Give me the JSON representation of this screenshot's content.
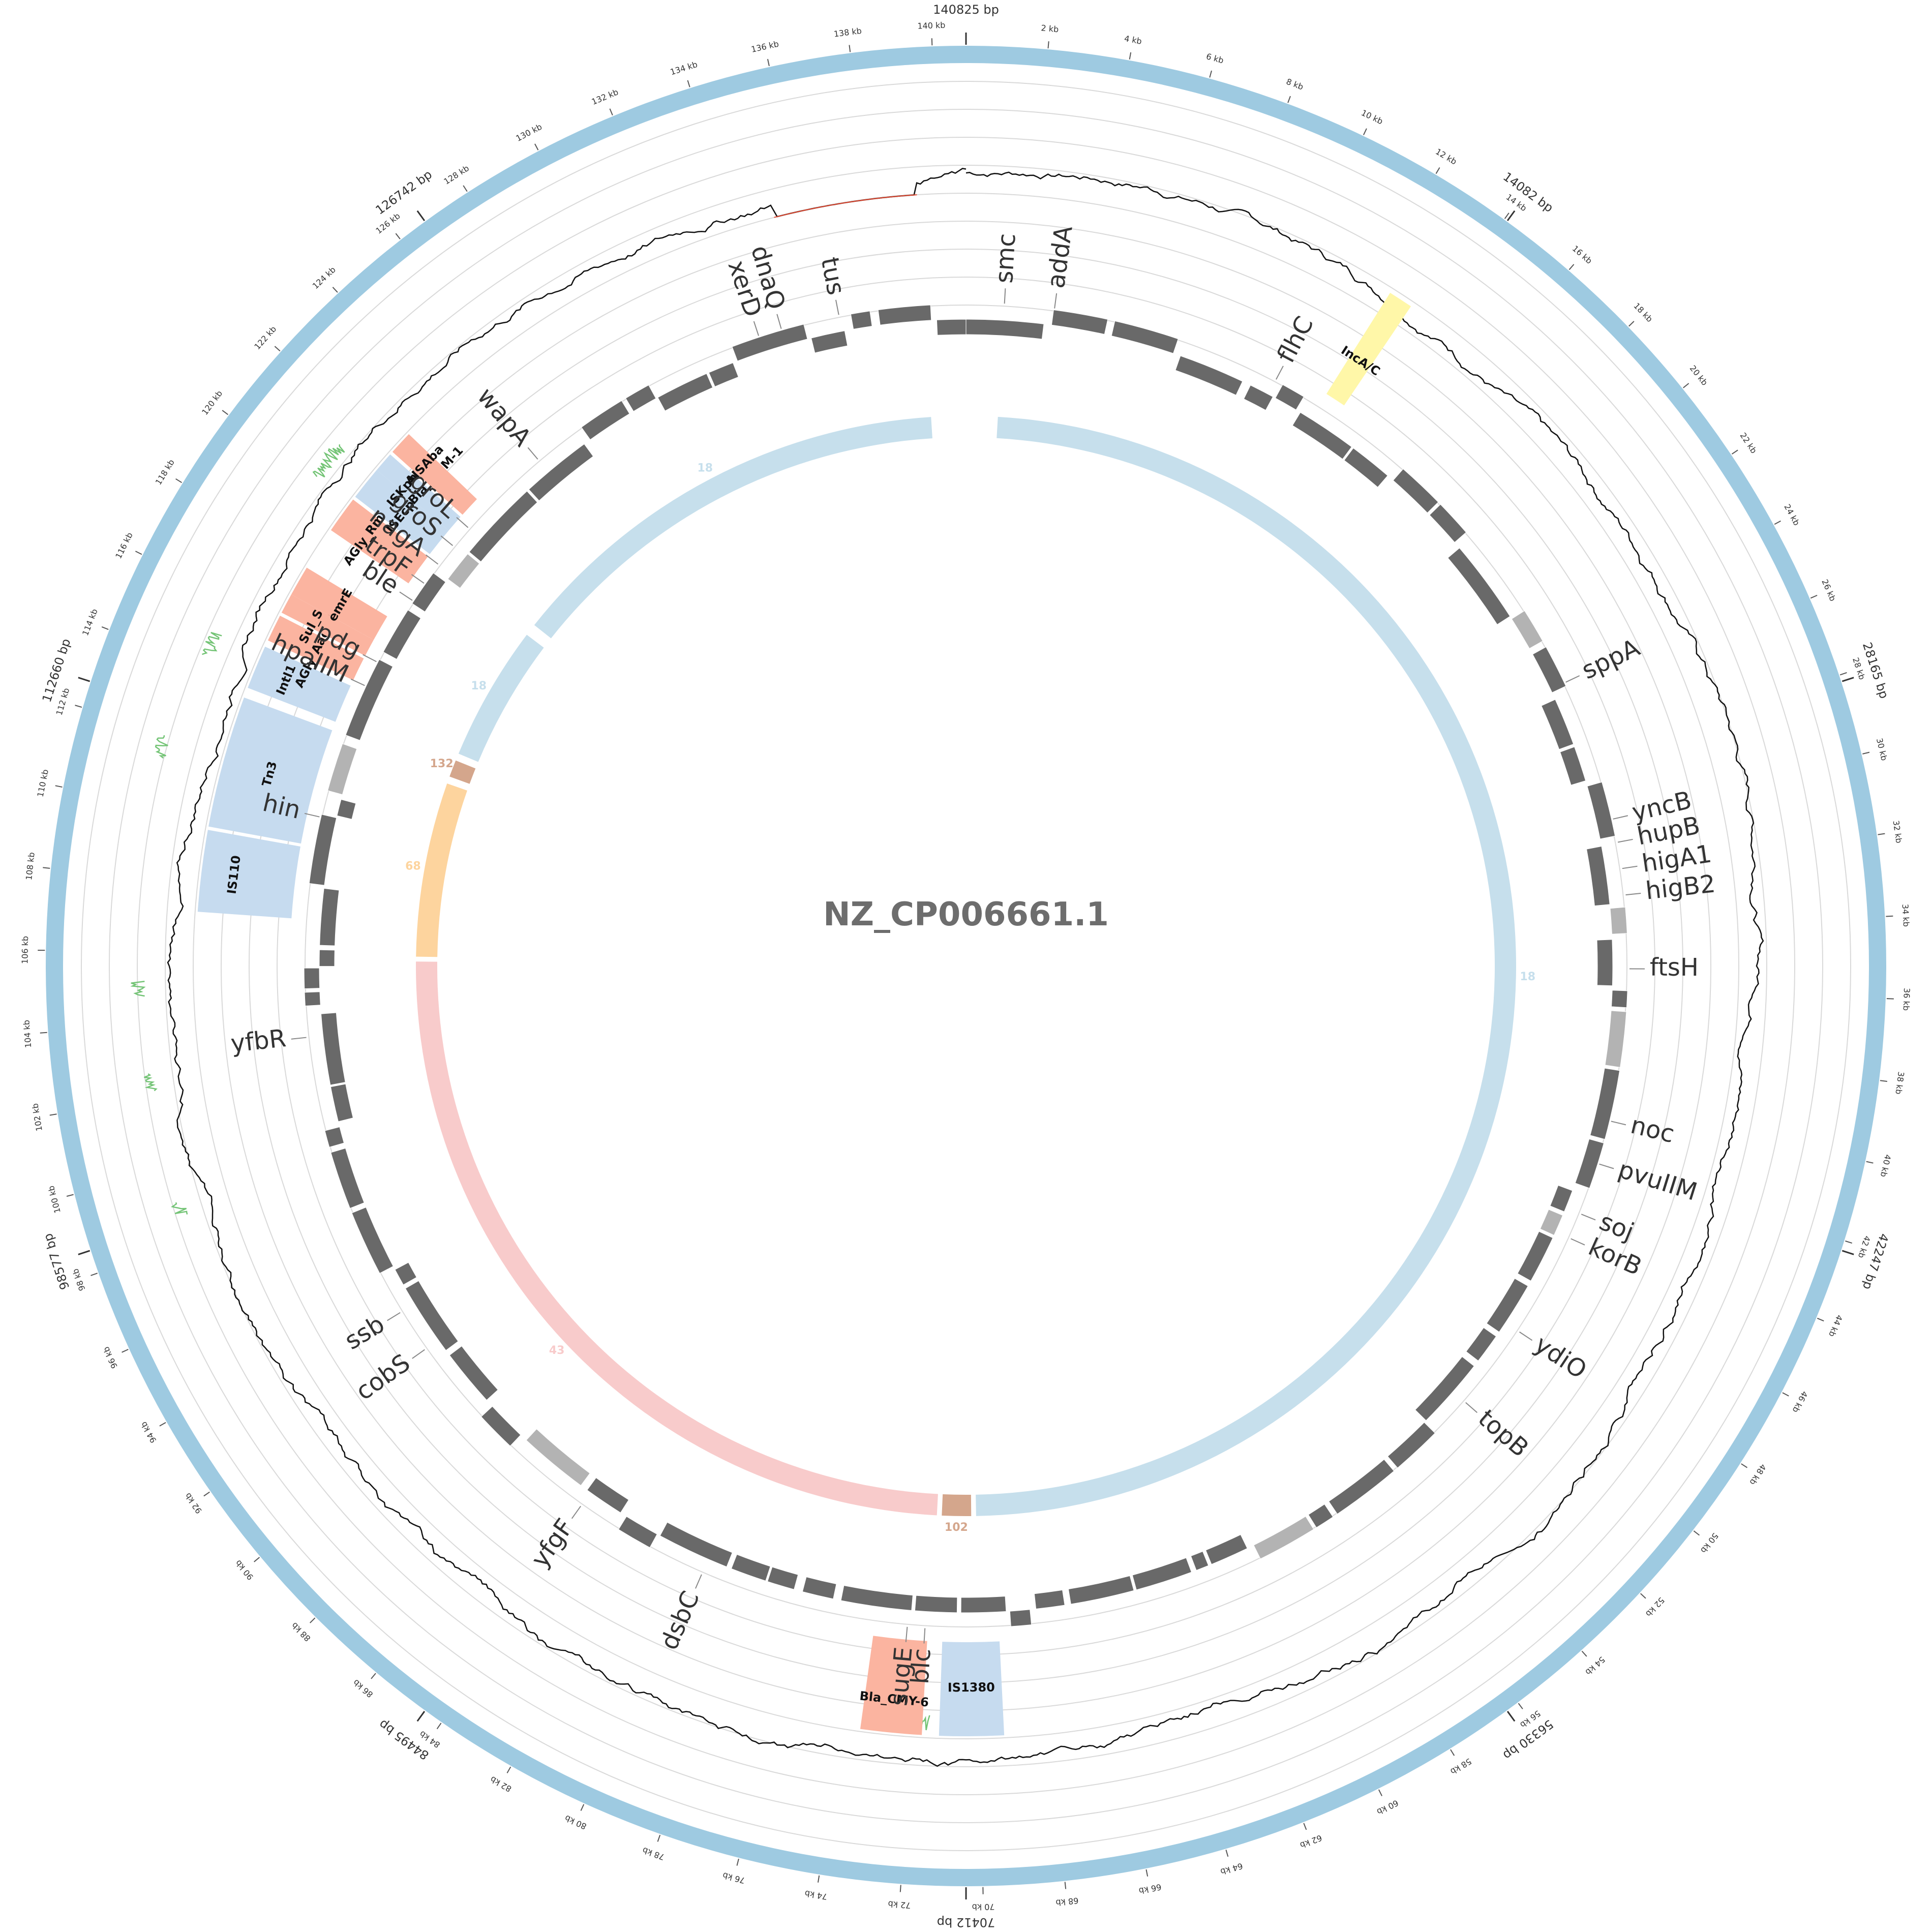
{
  "map": {
    "title": "NZ_CP006661.1",
    "total_length_bp": 140825,
    "colors": {
      "outer_ring": "#9ecae1",
      "gene_forward": "#696969",
      "gene_mobile": "#b3b3b3",
      "coverage_line": "#111111",
      "coverage_low": "#e34a33",
      "coverage_high": "#74c476",
      "resistance": "#fbb4a0",
      "mobile_element": "#c6dbef",
      "replicon": "#fff7a8",
      "grid": "#d9d9d9",
      "contig_blue": "#c6dfec",
      "contig_orange": "#fdd49e",
      "contig_brown": "#d4a68c",
      "contig_pink": "#f8cbcb",
      "title": "#6d6d6d"
    }
  },
  "ticks": {
    "minor": [
      "2 kb",
      "4 kb",
      "6 kb",
      "8 kb",
      "10 kb",
      "12 kb",
      "14 kb",
      "16 kb",
      "18 kb",
      "20 kb",
      "22 kb",
      "24 kb",
      "26 kb",
      "28 kb",
      "30 kb",
      "32 kb",
      "34 kb",
      "36 kb",
      "38 kb",
      "40 kb",
      "42 kb",
      "44 kb",
      "46 kb",
      "48 kb",
      "50 kb",
      "52 kb",
      "54 kb",
      "56 kb",
      "58 kb",
      "60 kb",
      "62 kb",
      "64 kb",
      "66 kb",
      "68 kb",
      "70 kb",
      "72 kb",
      "74 kb",
      "76 kb",
      "78 kb",
      "80 kb",
      "82 kb",
      "84 kb",
      "86 kb",
      "88 kb",
      "90 kb",
      "92 kb",
      "94 kb",
      "96 kb",
      "98 kb",
      "100 kb",
      "102 kb",
      "104 kb",
      "106 kb",
      "108 kb",
      "110 kb",
      "112 kb",
      "114 kb",
      "116 kb",
      "118 kb",
      "120 kb",
      "122 kb",
      "124 kb",
      "126 kb",
      "128 kb",
      "130 kb",
      "132 kb",
      "134 kb",
      "136 kb",
      "138 kb",
      "140 kb"
    ],
    "minor_bp": [
      2000,
      4000,
      6000,
      8000,
      10000,
      12000,
      14000,
      16000,
      18000,
      20000,
      22000,
      24000,
      26000,
      28000,
      30000,
      32000,
      34000,
      36000,
      38000,
      40000,
      42000,
      44000,
      46000,
      48000,
      50000,
      52000,
      54000,
      56000,
      58000,
      60000,
      62000,
      64000,
      66000,
      68000,
      70000,
      72000,
      74000,
      76000,
      78000,
      80000,
      82000,
      84000,
      86000,
      88000,
      90000,
      92000,
      94000,
      96000,
      98000,
      100000,
      102000,
      104000,
      106000,
      108000,
      110000,
      112000,
      114000,
      116000,
      118000,
      120000,
      122000,
      124000,
      126000,
      128000,
      130000,
      132000,
      134000,
      136000,
      138000,
      140000
    ],
    "major": [
      {
        "label": "140825 bp",
        "bp": 0
      },
      {
        "label": "14082 bp",
        "bp": 14082
      },
      {
        "label": "28165 bp",
        "bp": 28165
      },
      {
        "label": "42247 bp",
        "bp": 42247
      },
      {
        "label": "56330 bp",
        "bp": 56330
      },
      {
        "label": "70412 bp",
        "bp": 70412
      },
      {
        "label": "84495 bp",
        "bp": 84495
      },
      {
        "label": "98577 bp",
        "bp": 98577
      },
      {
        "label": "112660 bp",
        "bp": 112660
      },
      {
        "label": "126742 bp",
        "bp": 126742
      }
    ]
  },
  "genes": [
    {
      "label": "smc",
      "bp": 1300
    },
    {
      "label": "addA",
      "bp": 3000
    },
    {
      "label": "flhC",
      "bp": 10900
    },
    {
      "label": "sppA",
      "bp": 25300
    },
    {
      "label": "yncB",
      "bp": 30200
    },
    {
      "label": "hupB",
      "bp": 31000
    },
    {
      "label": "higA1",
      "bp": 31900
    },
    {
      "label": "higB2",
      "bp": 32800
    },
    {
      "label": "ftsH",
      "bp": 35300
    },
    {
      "label": "noc",
      "bp": 40500
    },
    {
      "label": "pvuIIM",
      "bp": 42000
    },
    {
      "label": "soj",
      "bp": 43800
    },
    {
      "label": "korB",
      "bp": 44700
    },
    {
      "label": "ydiO",
      "bp": 48300
    },
    {
      "label": "topB",
      "bp": 51300
    },
    {
      "label": "blc",
      "bp": 71800
    },
    {
      "label": "sugE",
      "bp": 72400
    },
    {
      "label": "dsbC",
      "bp": 79600
    },
    {
      "label": "yfgF",
      "bp": 84300
    },
    {
      "label": "cobS",
      "bp": 91800
    },
    {
      "label": "ssb",
      "bp": 93300
    },
    {
      "label": "yfbR",
      "bp": 103200
    },
    {
      "label": "hin",
      "bp": 110700
    },
    {
      "label": "hpaIIM",
      "bp": 115400
    },
    {
      "label": "pdg",
      "bp": 116300
    },
    {
      "label": "ble",
      "bp": 118700
    },
    {
      "label": "trpF",
      "bp": 119400
    },
    {
      "label": "nagA",
      "bp": 120200
    },
    {
      "label": "groS",
      "bp": 121000
    },
    {
      "label": "groL",
      "bp": 121800
    },
    {
      "label": "wapA",
      "bp": 125100
    },
    {
      "label": "xerD",
      "bp": 133700
    },
    {
      "label": "dnaQ",
      "bp": 134500
    },
    {
      "label": "tus",
      "bp": 136500
    }
  ],
  "features": [
    {
      "label": "IncA/C",
      "start": 12600,
      "end": 13300,
      "kind": "replicon"
    },
    {
      "label": "Bla_CMY-6",
      "start": 71700,
      "end": 73500,
      "kind": "resistance"
    },
    {
      "label": "IS1380",
      "start": 69300,
      "end": 71200,
      "kind": "mobile"
    },
    {
      "label": "IS110",
      "start": 107200,
      "end": 109600,
      "kind": "mobile"
    },
    {
      "label": "Tn3",
      "start": 109700,
      "end": 113600,
      "kind": "mobile"
    },
    {
      "label": "Intl1",
      "start": 113900,
      "end": 115200,
      "kind": "mobile"
    },
    {
      "label": "AGly_Aac6Ib",
      "start": 115400,
      "end": 116200,
      "kind": "resistance"
    },
    {
      "label": "Sul_SulI",
      "start": 116300,
      "end": 116900,
      "kind": "resistance"
    },
    {
      "label": "emrE",
      "start": 116900,
      "end": 117800,
      "kind": "resistance"
    },
    {
      "label": "AGly_RmtC",
      "start": 119100,
      "end": 120200,
      "kind": "resistance"
    },
    {
      "label": "ISEcp1",
      "start": 120300,
      "end": 121300,
      "kind": "mobile"
    },
    {
      "label": "ISKpn14",
      "start": 121300,
      "end": 121900,
      "kind": "mobile"
    },
    {
      "label": "Bla_NDM-1",
      "start": 122000,
      "end": 122700,
      "kind": "resistance"
    },
    {
      "label": "AISAba",
      "start": 122000,
      "end": 122700,
      "kind": "resistance"
    }
  ],
  "contigs": [
    {
      "label": "18",
      "start": 1300,
      "end": 70000,
      "color": "contig_blue"
    },
    {
      "label": "102",
      "start": 70200,
      "end": 71400,
      "color": "contig_brown"
    },
    {
      "label": "43",
      "start": 71600,
      "end": 105800,
      "color": "contig_pink"
    },
    {
      "label": "68",
      "start": 106000,
      "end": 113200,
      "color": "contig_orange"
    },
    {
      "label": "132",
      "start": 113500,
      "end": 114200,
      "color": "contig_brown"
    },
    {
      "label": "18",
      "start": 114500,
      "end": 120100,
      "color": "contig_blue"
    },
    {
      "label": "18",
      "start": 120600,
      "end": 139400,
      "color": "contig_blue"
    }
  ]
}
